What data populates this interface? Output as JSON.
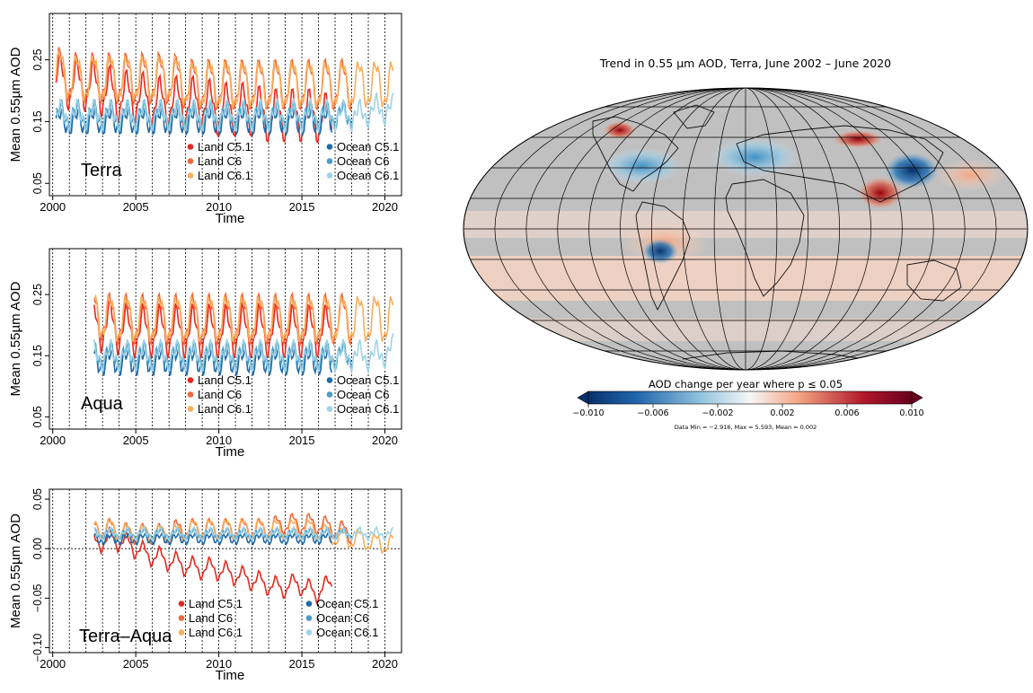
{
  "chart_data": [
    {
      "type": "line",
      "panel_label": "Terra",
      "xlabel": "Time",
      "ylabel": "Mean 0.55µm AOD",
      "xlim": [
        1999.8,
        2021.0
      ],
      "ylim": [
        0.03,
        0.325
      ],
      "x_ticks": [
        2000,
        2005,
        2010,
        2015,
        2020
      ],
      "y_ticks": [
        0.05,
        0.15,
        0.25
      ],
      "y_tick_labels": [
        "0.05",
        "0.15",
        "0.25"
      ],
      "zero_line": false,
      "grid": "dotted vertical lines at each year",
      "legend": {
        "land": [
          "Land C5.1",
          "Land C6",
          "Land C6.1"
        ],
        "ocean": [
          "Ocean C5.1",
          "Ocean C6",
          "Ocean C6.1"
        ]
      },
      "series": [
        {
          "name": "Land C5.1",
          "color": "#e8291f",
          "x_start": 2000.2,
          "x_end": 2016.8,
          "values": [
            0.22,
            0.21,
            0.21,
            0.2,
            0.19,
            0.19,
            0.18,
            0.18,
            0.18,
            0.18,
            0.17,
            0.17,
            0.17,
            0.16,
            0.16,
            0.16,
            0.16,
            0.15
          ]
        },
        {
          "name": "Land C6",
          "color": "#f4663a",
          "x_start": 2000.2,
          "x_end": 2018.0,
          "values": [
            0.23,
            0.22,
            0.22,
            0.22,
            0.22,
            0.22,
            0.22,
            0.22,
            0.21,
            0.21,
            0.21,
            0.21,
            0.21,
            0.21,
            0.21,
            0.21,
            0.21,
            0.21,
            0.21
          ]
        },
        {
          "name": "Land C6.1",
          "color": "#f8ae5c",
          "x_start": 2000.2,
          "x_end": 2020.5,
          "values": [
            0.23,
            0.22,
            0.22,
            0.22,
            0.22,
            0.22,
            0.22,
            0.22,
            0.21,
            0.21,
            0.21,
            0.21,
            0.21,
            0.21,
            0.21,
            0.21,
            0.21,
            0.21,
            0.21,
            0.21,
            0.21
          ]
        },
        {
          "name": "Ocean C5.1",
          "color": "#1f6aa8",
          "x_start": 2000.2,
          "x_end": 2016.8,
          "values": [
            0.15,
            0.15,
            0.15,
            0.15,
            0.15,
            0.15,
            0.15,
            0.15,
            0.15,
            0.15,
            0.15,
            0.15,
            0.15,
            0.15,
            0.15,
            0.15,
            0.15,
            0.15
          ]
        },
        {
          "name": "Ocean C6",
          "color": "#4a9dc8",
          "x_start": 2000.2,
          "x_end": 2018.0,
          "values": [
            0.16,
            0.16,
            0.16,
            0.16,
            0.16,
            0.16,
            0.16,
            0.16,
            0.16,
            0.16,
            0.16,
            0.16,
            0.16,
            0.16,
            0.16,
            0.16,
            0.16,
            0.16,
            0.16
          ]
        },
        {
          "name": "Ocean C6.1",
          "color": "#9fd3e6",
          "x_start": 2000.2,
          "x_end": 2020.5,
          "values": [
            0.16,
            0.16,
            0.16,
            0.16,
            0.16,
            0.16,
            0.16,
            0.16,
            0.16,
            0.16,
            0.16,
            0.16,
            0.16,
            0.16,
            0.16,
            0.16,
            0.16,
            0.16,
            0.16,
            0.17,
            0.17
          ]
        }
      ]
    },
    {
      "type": "line",
      "panel_label": "Aqua",
      "xlabel": "Time",
      "ylabel": "Mean 0.55µm AOD",
      "xlim": [
        1999.8,
        2021.0
      ],
      "ylim": [
        0.03,
        0.325
      ],
      "x_ticks": [
        2000,
        2005,
        2010,
        2015,
        2020
      ],
      "y_ticks": [
        0.05,
        0.15,
        0.25
      ],
      "y_tick_labels": [
        "0.05",
        "0.15",
        "0.25"
      ],
      "zero_line": false,
      "grid": "dotted vertical lines at each year",
      "legend": {
        "land": [
          "Land C5.1",
          "Land C6",
          "Land C6.1"
        ],
        "ocean": [
          "Ocean C5.1",
          "Ocean C6",
          "Ocean C6.1"
        ]
      },
      "series": [
        {
          "name": "Land C5.1",
          "color": "#e8291f",
          "x_start": 2002.5,
          "x_end": 2016.8,
          "values": [
            0.2,
            0.2,
            0.19,
            0.19,
            0.19,
            0.19,
            0.19,
            0.19,
            0.19,
            0.19,
            0.19,
            0.19,
            0.19,
            0.19,
            0.19
          ]
        },
        {
          "name": "Land C6",
          "color": "#f4663a",
          "x_start": 2002.5,
          "x_end": 2018.0,
          "values": [
            0.22,
            0.21,
            0.21,
            0.21,
            0.21,
            0.21,
            0.21,
            0.21,
            0.21,
            0.21,
            0.21,
            0.21,
            0.21,
            0.21,
            0.21,
            0.21
          ]
        },
        {
          "name": "Land C6.1",
          "color": "#f8ae5c",
          "x_start": 2002.5,
          "x_end": 2020.5,
          "values": [
            0.22,
            0.21,
            0.21,
            0.21,
            0.21,
            0.21,
            0.21,
            0.21,
            0.21,
            0.21,
            0.21,
            0.21,
            0.21,
            0.21,
            0.21,
            0.21,
            0.21,
            0.21,
            0.21
          ]
        },
        {
          "name": "Ocean C5.1",
          "color": "#1f6aa8",
          "x_start": 2002.5,
          "x_end": 2016.8,
          "values": [
            0.14,
            0.14,
            0.14,
            0.14,
            0.14,
            0.14,
            0.14,
            0.14,
            0.14,
            0.14,
            0.14,
            0.14,
            0.14,
            0.14,
            0.14
          ]
        },
        {
          "name": "Ocean C6",
          "color": "#4a9dc8",
          "x_start": 2002.5,
          "x_end": 2018.0,
          "values": [
            0.15,
            0.15,
            0.15,
            0.15,
            0.15,
            0.15,
            0.15,
            0.15,
            0.15,
            0.15,
            0.15,
            0.15,
            0.15,
            0.15,
            0.15,
            0.15
          ]
        },
        {
          "name": "Ocean C6.1",
          "color": "#9fd3e6",
          "x_start": 2002.5,
          "x_end": 2020.5,
          "values": [
            0.15,
            0.15,
            0.15,
            0.15,
            0.15,
            0.15,
            0.15,
            0.15,
            0.15,
            0.15,
            0.15,
            0.15,
            0.15,
            0.15,
            0.15,
            0.15,
            0.15,
            0.15,
            0.16
          ]
        }
      ]
    },
    {
      "type": "line",
      "panel_label": "Terra–Aqua",
      "xlabel": "Time",
      "ylabel": "Mean 0.55µm AOD",
      "xlim": [
        1999.8,
        2021.0
      ],
      "ylim": [
        -0.105,
        0.06
      ],
      "x_ticks": [
        2000,
        2005,
        2010,
        2015,
        2020
      ],
      "y_ticks": [
        -0.1,
        -0.05,
        0.0,
        0.05
      ],
      "y_tick_labels": [
        "−0.10",
        "−0.05",
        "0.00",
        "0.05"
      ],
      "zero_line": true,
      "grid": "dotted vertical lines at each year",
      "legend": {
        "land": [
          "Land C5.1",
          "Land C6",
          "Land C6.1"
        ],
        "ocean": [
          "Ocean C5.1",
          "Ocean C6",
          "Ocean C6.1"
        ]
      },
      "series": [
        {
          "name": "Land C5.1",
          "color": "#e8291f",
          "x_start": 2002.5,
          "x_end": 2016.8,
          "values": [
            0.005,
            0.01,
            0.005,
            -0.005,
            -0.01,
            -0.015,
            -0.02,
            -0.02,
            -0.025,
            -0.03,
            -0.035,
            -0.04,
            -0.035,
            -0.045,
            -0.035
          ]
        },
        {
          "name": "Land C6",
          "color": "#f4663a",
          "x_start": 2002.5,
          "x_end": 2018.0,
          "values": [
            0.02,
            0.02,
            0.015,
            0.015,
            0.015,
            0.02,
            0.02,
            0.02,
            0.02,
            0.02,
            0.02,
            0.025,
            0.025,
            0.025,
            0.02,
            0.015
          ]
        },
        {
          "name": "Land C6.1",
          "color": "#f8ae5c",
          "x_start": 2002.5,
          "x_end": 2020.5,
          "values": [
            0.02,
            0.02,
            0.015,
            0.015,
            0.015,
            0.015,
            0.02,
            0.02,
            0.02,
            0.02,
            0.02,
            0.02,
            0.02,
            0.02,
            0.015,
            0.01,
            0.01,
            0.005,
            0.005
          ]
        },
        {
          "name": "Ocean C5.1",
          "color": "#1f6aa8",
          "x_start": 2002.5,
          "x_end": 2016.8,
          "values": [
            0.01,
            0.01,
            0.01,
            0.01,
            0.01,
            0.01,
            0.01,
            0.01,
            0.01,
            0.01,
            0.01,
            0.01,
            0.01,
            0.01,
            0.01
          ]
        },
        {
          "name": "Ocean C6",
          "color": "#4a9dc8",
          "x_start": 2002.5,
          "x_end": 2018.0,
          "values": [
            0.015,
            0.015,
            0.015,
            0.015,
            0.015,
            0.015,
            0.015,
            0.015,
            0.015,
            0.015,
            0.015,
            0.015,
            0.015,
            0.015,
            0.015,
            0.015
          ]
        },
        {
          "name": "Ocean C6.1",
          "color": "#9fd3e6",
          "x_start": 2002.5,
          "x_end": 2020.5,
          "values": [
            0.015,
            0.015,
            0.015,
            0.015,
            0.015,
            0.015,
            0.015,
            0.015,
            0.015,
            0.015,
            0.015,
            0.015,
            0.015,
            0.015,
            0.015,
            0.015,
            0.015,
            0.015,
            0.015
          ]
        }
      ]
    },
    {
      "type": "heatmap",
      "title": "Trend in 0.55 µm AOD, Terra, June 2002 – June 2020",
      "colorbar_label": "AOD change per year where p ≤ 0.05",
      "colorbar_ticks": [
        "−0.010",
        "−0.006",
        "−0.002",
        "0.002",
        "0.006",
        "0.010"
      ],
      "colorbar_range": [
        -0.01,
        0.01
      ],
      "stats": "Data Min = −2.916, Max = 5.593, Mean = 0.002",
      "projection": "Mollweide",
      "colors": {
        "negative": "#08306b",
        "neutral": "#f7f7f7",
        "positive": "#67001f",
        "insignificant": "#c0c0c0"
      }
    }
  ]
}
